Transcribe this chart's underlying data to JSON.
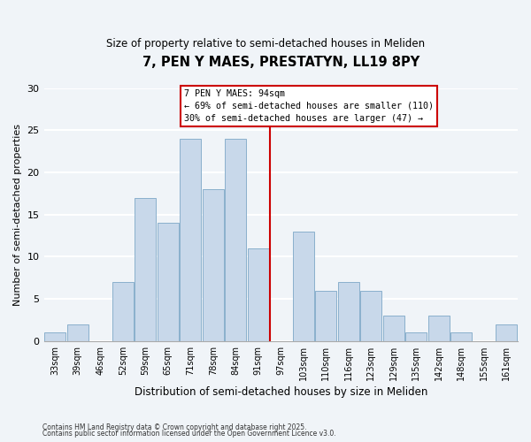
{
  "title": "7, PEN Y MAES, PRESTATYN, LL19 8PY",
  "subtitle": "Size of property relative to semi-detached houses in Meliden",
  "xlabel": "Distribution of semi-detached houses by size in Meliden",
  "ylabel": "Number of semi-detached properties",
  "bar_color": "#c8d8ea",
  "bar_edgecolor": "#8ab0cc",
  "background_color": "#f0f4f8",
  "grid_color": "#ffffff",
  "categories": [
    "33sqm",
    "39sqm",
    "46sqm",
    "52sqm",
    "59sqm",
    "65sqm",
    "71sqm",
    "78sqm",
    "84sqm",
    "91sqm",
    "97sqm",
    "103sqm",
    "110sqm",
    "116sqm",
    "123sqm",
    "129sqm",
    "135sqm",
    "142sqm",
    "148sqm",
    "155sqm",
    "161sqm"
  ],
  "values": [
    1,
    2,
    0,
    7,
    17,
    14,
    24,
    18,
    24,
    11,
    0,
    13,
    6,
    7,
    6,
    3,
    1,
    3,
    1,
    0,
    2
  ],
  "vline_x": 9.5,
  "vline_color": "#cc0000",
  "ylim": [
    0,
    30
  ],
  "yticks": [
    0,
    5,
    10,
    15,
    20,
    25,
    30
  ],
  "annotation_title": "7 PEN Y MAES: 94sqm",
  "annotation_line1": "← 69% of semi-detached houses are smaller (110)",
  "annotation_line2": "30% of semi-detached houses are larger (47) →",
  "footer1": "Contains HM Land Registry data © Crown copyright and database right 2025.",
  "footer2": "Contains public sector information licensed under the Open Government Licence v3.0."
}
